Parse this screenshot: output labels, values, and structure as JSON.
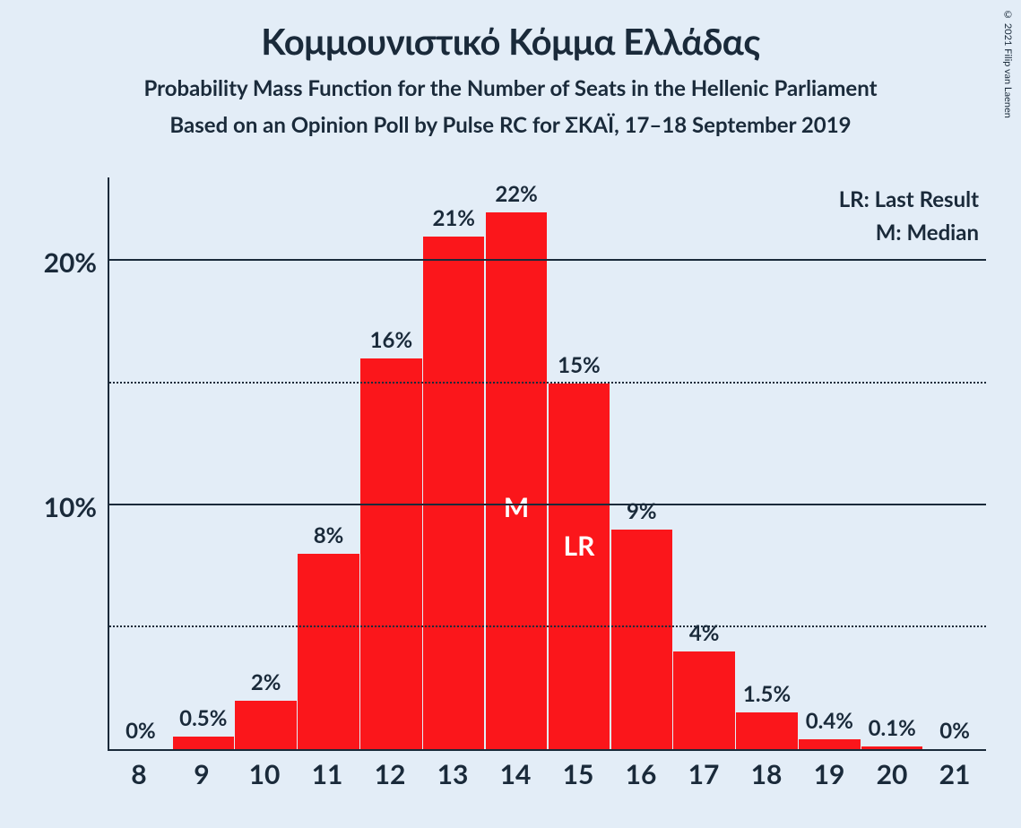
{
  "copyright": "© 2021 Filip van Laenen",
  "title": "Κομμουνιστικό Κόμμα Ελλάδας",
  "subtitle1": "Probability Mass Function for the Number of Seats in the Hellenic Parliament",
  "subtitle2": "Based on an Opinion Poll by Pulse RC for ΣΚΑΪ, 17–18 September 2019",
  "legend": {
    "lr": "LR: Last Result",
    "m": "M: Median"
  },
  "chart": {
    "type": "bar",
    "background_color": "#e3edf7",
    "bar_color": "#fb161b",
    "text_color": "#1a2a3a",
    "axis_color": "#1a2a3a",
    "ymax_percent": 23.5,
    "major_ticks_percent": [
      10,
      20
    ],
    "minor_ticks_percent": [
      5,
      15
    ],
    "y_tick_labels": {
      "10": "10%",
      "20": "20%"
    },
    "categories": [
      "8",
      "9",
      "10",
      "11",
      "12",
      "13",
      "14",
      "15",
      "16",
      "17",
      "18",
      "19",
      "20",
      "21"
    ],
    "values_percent": [
      0,
      0.5,
      2,
      8,
      16,
      21,
      22,
      15,
      9,
      4,
      1.5,
      0.4,
      0.1,
      0
    ],
    "value_labels": [
      "0%",
      "0.5%",
      "2%",
      "8%",
      "16%",
      "21%",
      "22%",
      "15%",
      "9%",
      "4%",
      "1.5%",
      "0.4%",
      "0.1%",
      "0%"
    ],
    "annotations": {
      "14": "M",
      "15": "LR"
    },
    "annotation_font_size_pt": 30,
    "bar_label_font_size_pt": 24,
    "axis_label_font_size_pt": 30,
    "title_font_size_pt": 40,
    "subtitle_font_size_pt": 24
  }
}
